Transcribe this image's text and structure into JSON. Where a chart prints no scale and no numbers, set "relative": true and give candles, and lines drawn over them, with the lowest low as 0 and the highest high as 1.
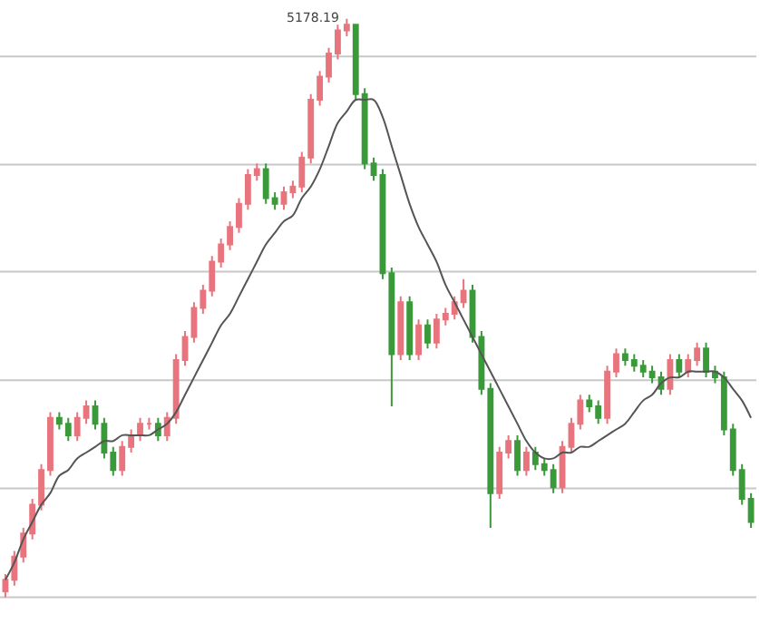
{
  "chart_data": {
    "type": "candlestick",
    "relative": true,
    "categories": [
      null,
      null,
      null,
      null,
      null,
      null,
      null,
      null,
      null,
      null,
      null,
      null,
      null,
      null,
      null,
      null,
      null,
      null,
      null,
      null,
      null,
      null,
      null,
      null,
      null,
      null,
      null,
      null,
      null,
      null,
      null,
      null,
      null,
      null,
      null,
      null,
      null,
      null,
      null,
      null,
      null,
      null,
      null,
      null,
      null,
      null,
      null,
      null,
      null,
      null,
      null,
      null,
      null,
      null,
      null,
      null,
      null,
      null,
      null,
      null,
      null,
      null,
      null,
      null,
      null,
      null,
      null,
      null,
      null,
      null,
      null,
      null,
      null,
      null,
      null,
      null,
      null,
      null,
      null,
      null,
      null,
      null,
      null,
      null
    ],
    "ohlc": [
      [
        0.01,
        0.04,
        0,
        0.03
      ],
      [
        0.03,
        0.08,
        0.02,
        0.07
      ],
      [
        0.07,
        0.12,
        0.06,
        0.11
      ],
      [
        0.11,
        0.17,
        0.1,
        0.16
      ],
      [
        0.16,
        0.23,
        0.15,
        0.22
      ],
      [
        0.22,
        0.32,
        0.21,
        0.31
      ],
      [
        0.31,
        0.32,
        0.29,
        0.3
      ],
      [
        0.3,
        0.31,
        0.27,
        0.28
      ],
      [
        0.28,
        0.32,
        0.27,
        0.31
      ],
      [
        0.31,
        0.34,
        0.3,
        0.33
      ],
      [
        0.33,
        0.34,
        0.29,
        0.3
      ],
      [
        0.3,
        0.31,
        0.24,
        0.25
      ],
      [
        0.25,
        0.26,
        0.21,
        0.22
      ],
      [
        0.22,
        0.27,
        0.21,
        0.26
      ],
      [
        0.26,
        0.29,
        0.25,
        0.28
      ],
      [
        0.28,
        0.31,
        0.27,
        0.3
      ],
      [
        0.3,
        0.31,
        0.29,
        0.3
      ],
      [
        0.3,
        0.31,
        0.27,
        0.28
      ],
      [
        0.28,
        0.32,
        0.27,
        0.31
      ],
      [
        0.31,
        0.42,
        0.3,
        0.41
      ],
      [
        0.41,
        0.46,
        0.4,
        0.45
      ],
      [
        0.45,
        0.51,
        0.44,
        0.5
      ],
      [
        0.5,
        0.54,
        0.49,
        0.53
      ],
      [
        0.53,
        0.59,
        0.52,
        0.58
      ],
      [
        0.58,
        0.62,
        0.57,
        0.61
      ],
      [
        0.61,
        0.65,
        0.6,
        0.64
      ],
      [
        0.64,
        0.69,
        0.63,
        0.68
      ],
      [
        0.68,
        0.74,
        0.67,
        0.73
      ],
      [
        0.73,
        0.75,
        0.72,
        0.74
      ],
      [
        0.74,
        0.75,
        0.68,
        0.69
      ],
      [
        0.69,
        0.7,
        0.67,
        0.68
      ],
      [
        0.68,
        0.71,
        0.67,
        0.7
      ],
      [
        0.7,
        0.72,
        0.69,
        0.71
      ],
      [
        0.71,
        0.77,
        0.7,
        0.76
      ],
      [
        0.76,
        0.87,
        0.75,
        0.86
      ],
      [
        0.86,
        0.91,
        0.85,
        0.9
      ],
      [
        0.9,
        0.95,
        0.89,
        0.94
      ],
      [
        0.94,
        0.99,
        0.93,
        0.98
      ],
      [
        0.98,
        1,
        0.97,
        0.99
      ],
      [
        0.99,
        0.99,
        0.86,
        0.87
      ],
      [
        0.87,
        0.88,
        0.74,
        0.75
      ],
      [
        0.75,
        0.76,
        0.72,
        0.73
      ],
      [
        0.73,
        0.74,
        0.55,
        0.56
      ],
      [
        0.56,
        0.57,
        0.33,
        0.42
      ],
      [
        0.42,
        0.52,
        0.41,
        0.51
      ],
      [
        0.51,
        0.52,
        0.41,
        0.42
      ],
      [
        0.42,
        0.48,
        0.41,
        0.47
      ],
      [
        0.47,
        0.48,
        0.43,
        0.44
      ],
      [
        0.44,
        0.49,
        0.43,
        0.48
      ],
      [
        0.48,
        0.5,
        0.47,
        0.49
      ],
      [
        0.49,
        0.52,
        0.48,
        0.51
      ],
      [
        0.51,
        0.55,
        0.5,
        0.53
      ],
      [
        0.53,
        0.54,
        0.44,
        0.45
      ],
      [
        0.45,
        0.46,
        0.35,
        0.36
      ],
      [
        0.36,
        0.37,
        0.12,
        0.18
      ],
      [
        0.18,
        0.26,
        0.17,
        0.25
      ],
      [
        0.25,
        0.28,
        0.24,
        0.27
      ],
      [
        0.27,
        0.28,
        0.21,
        0.22
      ],
      [
        0.22,
        0.26,
        0.21,
        0.25
      ],
      [
        0.25,
        0.26,
        0.22,
        0.23
      ],
      [
        0.23,
        0.24,
        0.21,
        0.22
      ],
      [
        0.22,
        0.23,
        0.18,
        0.19
      ],
      [
        0.19,
        0.27,
        0.18,
        0.26
      ],
      [
        0.26,
        0.31,
        0.25,
        0.3
      ],
      [
        0.3,
        0.35,
        0.29,
        0.34
      ],
      [
        0.34,
        0.35,
        0.32,
        0.33
      ],
      [
        0.33,
        0.34,
        0.3,
        0.31
      ],
      [
        0.31,
        0.4,
        0.3,
        0.39
      ],
      [
        0.39,
        0.43,
        0.38,
        0.42
      ],
      [
        0.42,
        0.43,
        0.4,
        0.41
      ],
      [
        0.41,
        0.42,
        0.39,
        0.4
      ],
      [
        0.4,
        0.41,
        0.38,
        0.39
      ],
      [
        0.39,
        0.4,
        0.37,
        0.38
      ],
      [
        0.38,
        0.39,
        0.35,
        0.36
      ],
      [
        0.36,
        0.42,
        0.35,
        0.41
      ],
      [
        0.41,
        0.42,
        0.38,
        0.39
      ],
      [
        0.39,
        0.42,
        0.38,
        0.41
      ],
      [
        0.41,
        0.44,
        0.4,
        0.43
      ],
      [
        0.43,
        0.44,
        0.38,
        0.39
      ],
      [
        0.39,
        0.4,
        0.37,
        0.38
      ],
      [
        0.38,
        0.39,
        0.28,
        0.29
      ],
      [
        0.29,
        0.3,
        0.21,
        0.22
      ],
      [
        0.22,
        0.23,
        0.16,
        0.17
      ],
      [
        0.17,
        0.18,
        0.12,
        0.13
      ]
    ],
    "colors": [
      "#e8747e",
      "#e8747e",
      "#e8747e",
      "#e8747e",
      "#e8747e",
      "#e8747e",
      "#3a9a3a",
      "#3a9a3a",
      "#e8747e",
      "#e8747e",
      "#3a9a3a",
      "#3a9a3a",
      "#3a9a3a",
      "#e8747e",
      "#e8747e",
      "#e8747e",
      "#e8747e",
      "#3a9a3a",
      "#e8747e",
      "#e8747e",
      "#e8747e",
      "#e8747e",
      "#e8747e",
      "#e8747e",
      "#e8747e",
      "#e8747e",
      "#e8747e",
      "#e8747e",
      "#e8747e",
      "#3a9a3a",
      "#3a9a3a",
      "#e8747e",
      "#e8747e",
      "#e8747e",
      "#e8747e",
      "#e8747e",
      "#e8747e",
      "#e8747e",
      "#e8747e",
      "#3a9a3a",
      "#3a9a3a",
      "#3a9a3a",
      "#3a9a3a",
      "#3a9a3a",
      "#e8747e",
      "#3a9a3a",
      "#e8747e",
      "#3a9a3a",
      "#e8747e",
      "#e8747e",
      "#e8747e",
      "#e8747e",
      "#3a9a3a",
      "#3a9a3a",
      "#3a9a3a",
      "#e8747e",
      "#e8747e",
      "#3a9a3a",
      "#e8747e",
      "#3a9a3a",
      "#3a9a3a",
      "#3a9a3a",
      "#e8747e",
      "#e8747e",
      "#e8747e",
      "#3a9a3a",
      "#3a9a3a",
      "#e8747e",
      "#e8747e",
      "#3a9a3a",
      "#3a9a3a",
      "#3a9a3a",
      "#3a9a3a",
      "#3a9a3a",
      "#e8747e",
      "#3a9a3a",
      "#e8747e",
      "#e8747e",
      "#3a9a3a",
      "#3a9a3a",
      "#3a9a3a",
      "#3a9a3a",
      "#3a9a3a",
      "#3a9a3a"
    ],
    "series": [
      {
        "type": "line",
        "color": "#555555",
        "values": [
          0.03,
          0.06,
          0.1,
          0.13,
          0.16,
          0.18,
          0.21,
          0.22,
          0.24,
          0.25,
          0.26,
          0.27,
          0.27,
          0.28,
          0.28,
          0.28,
          0.28,
          0.29,
          0.3,
          0.32,
          0.35,
          0.38,
          0.41,
          0.44,
          0.47,
          0.49,
          0.52,
          0.55,
          0.58,
          0.61,
          0.63,
          0.65,
          0.66,
          0.69,
          0.71,
          0.74,
          0.78,
          0.82,
          0.84,
          0.86,
          0.86,
          0.86,
          0.83,
          0.78,
          0.73,
          0.68,
          0.64,
          0.61,
          0.58,
          0.54,
          0.51,
          0.48,
          0.45,
          0.42,
          0.39,
          0.36,
          0.33,
          0.3,
          0.27,
          0.25,
          0.24,
          0.24,
          0.25,
          0.25,
          0.26,
          0.26,
          0.27,
          0.28,
          0.29,
          0.3,
          0.32,
          0.34,
          0.35,
          0.37,
          0.38,
          0.38,
          0.39,
          0.39,
          0.39,
          0.39,
          0.38,
          0.36,
          0.34,
          0.31
        ]
      }
    ],
    "ref_lines": [
      {
        "axis": "y",
        "value": 0,
        "color": "#c8c8c8"
      },
      {
        "axis": "y",
        "value": 0.188,
        "color": "#c8c8c8"
      },
      {
        "axis": "y",
        "value": 0.375,
        "color": "#c8c8c8"
      },
      {
        "axis": "y",
        "value": 0.563,
        "color": "#c8c8c8"
      },
      {
        "axis": "y",
        "value": 0.748,
        "color": "#c8c8c8"
      },
      {
        "axis": "y",
        "value": 0.935,
        "color": "#c8c8c8"
      }
    ],
    "annotations": [
      "5178.19"
    ]
  }
}
